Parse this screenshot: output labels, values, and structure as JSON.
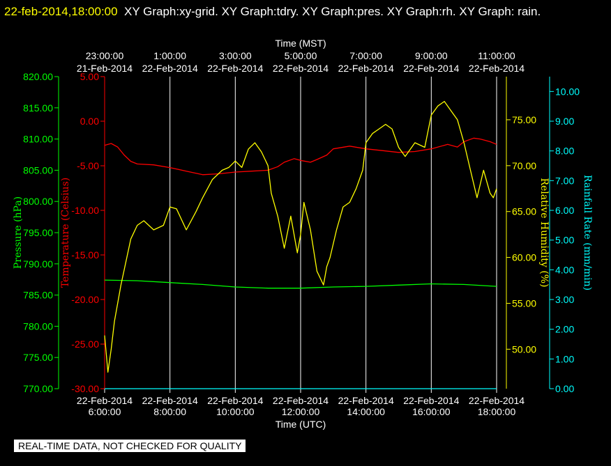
{
  "header": {
    "timestamp": "22-feb-2014,18:00:00",
    "graphs_text": "XY Graph:xy-grid.  XY Graph:tdry.  XY Graph:pres.  XY Graph:rh.  XY Graph: rain."
  },
  "footer": {
    "quality_note": "REAL-TIME DATA, NOT CHECKED FOR QUALITY"
  },
  "colors": {
    "temperature": "#ff0000",
    "pressure": "#00ff00",
    "humidity": "#ffff00",
    "rain": "#00ffff",
    "grid": "#ffffff",
    "axis_x": "#ffffff"
  },
  "chart_data": {
    "type": "line",
    "xlabel_top": "Time (MST)",
    "xlabel_bottom": "Time (UTC)",
    "x_range_utc_hours": [
      6.0,
      18.0
    ],
    "bottom_ticks": [
      {
        "date": "22-Feb-2014",
        "time": "6:00:00",
        "utc_hour": 6
      },
      {
        "date": "22-Feb-2014",
        "time": "8:00:00",
        "utc_hour": 8
      },
      {
        "date": "22-Feb-2014",
        "time": "10:00:00",
        "utc_hour": 10
      },
      {
        "date": "22-Feb-2014",
        "time": "12:00:00",
        "utc_hour": 12
      },
      {
        "date": "22-Feb-2014",
        "time": "14:00:00",
        "utc_hour": 14
      },
      {
        "date": "22-Feb-2014",
        "time": "16:00:00",
        "utc_hour": 16
      },
      {
        "date": "22-Feb-2014",
        "time": "18:00:00",
        "utc_hour": 18
      }
    ],
    "top_ticks": [
      {
        "time": "23:00:00",
        "date": "21-Feb-2014",
        "utc_hour": 6
      },
      {
        "time": "1:00:00",
        "date": "22-Feb-2014",
        "utc_hour": 8
      },
      {
        "time": "3:00:00",
        "date": "22-Feb-2014",
        "utc_hour": 10
      },
      {
        "time": "5:00:00",
        "date": "22-Feb-2014",
        "utc_hour": 12
      },
      {
        "time": "7:00:00",
        "date": "22-Feb-2014",
        "utc_hour": 14
      },
      {
        "time": "9:00:00",
        "date": "22-Feb-2014",
        "utc_hour": 16
      },
      {
        "time": "11:00:00",
        "date": "22-Feb-2014",
        "utc_hour": 18
      }
    ],
    "grid_x_utc_hours": [
      8,
      10,
      12,
      14,
      16,
      18
    ],
    "axes": {
      "pressure": {
        "label": "Pressure (hPa)",
        "ylim": [
          770,
          820
        ],
        "ticks": [
          "770.00",
          "775.00",
          "780.00",
          "785.00",
          "790.00",
          "795.00",
          "800.00",
          "805.00",
          "810.00",
          "815.00",
          "820.00"
        ]
      },
      "temperature": {
        "label": "Temperature (Celsius)",
        "ylim": [
          -30,
          5
        ],
        "ticks": [
          "-30.00",
          "-25.00",
          "-20.00",
          "-15.00",
          "-10.00",
          "-5.00",
          "0.00",
          "5.00"
        ]
      },
      "humidity": {
        "label": "Relative Humidity (%)",
        "ylim": [
          45.7,
          79.7
        ],
        "ticks": [
          "50.00",
          "55.00",
          "60.00",
          "65.00",
          "70.00",
          "75.00"
        ]
      },
      "rain": {
        "label": "Rainfall Rate (mm/min)",
        "ylim": [
          0,
          10.5
        ],
        "ticks": [
          "0.00",
          "1.00",
          "2.00",
          "3.00",
          "4.00",
          "5.00",
          "6.00",
          "7.00",
          "8.00",
          "9.00",
          "10.00"
        ]
      }
    },
    "series": [
      {
        "axis": "temperature",
        "x": [
          6.0,
          6.2,
          6.4,
          6.6,
          6.8,
          7.0,
          7.5,
          8.0,
          8.5,
          9.0,
          9.5,
          10.0,
          10.5,
          11.0,
          11.3,
          11.5,
          11.8,
          12.0,
          12.3,
          12.5,
          12.8,
          13.0,
          13.5,
          14.0,
          14.5,
          15.0,
          15.5,
          16.0,
          16.5,
          16.8,
          17.0,
          17.3,
          17.5,
          17.8,
          18.0
        ],
        "y": [
          -2.7,
          -2.5,
          -2.9,
          -3.8,
          -4.5,
          -4.8,
          -4.9,
          -5.2,
          -5.6,
          -6.0,
          -5.9,
          -5.7,
          -5.6,
          -5.5,
          -5.1,
          -4.6,
          -4.2,
          -4.4,
          -4.6,
          -4.3,
          -3.8,
          -3.1,
          -2.8,
          -3.1,
          -3.3,
          -3.5,
          -3.4,
          -3.1,
          -2.6,
          -2.9,
          -2.3,
          -1.9,
          -2.0,
          -2.3,
          -2.6
        ]
      },
      {
        "axis": "pressure",
        "x": [
          6.0,
          7.0,
          8.0,
          9.0,
          10.0,
          11.0,
          12.0,
          13.0,
          14.0,
          15.0,
          16.0,
          17.0,
          18.0
        ],
        "y": [
          787.4,
          787.3,
          787.0,
          786.7,
          786.3,
          786.1,
          786.1,
          786.3,
          786.4,
          786.6,
          786.8,
          786.7,
          786.4
        ]
      },
      {
        "axis": "humidity",
        "x": [
          6.0,
          6.1,
          6.2,
          6.3,
          6.5,
          6.8,
          7.0,
          7.2,
          7.5,
          7.8,
          8.0,
          8.2,
          8.5,
          8.8,
          9.0,
          9.3,
          9.6,
          9.8,
          10.0,
          10.2,
          10.4,
          10.6,
          10.8,
          11.0,
          11.1,
          11.3,
          11.5,
          11.7,
          11.9,
          12.0,
          12.1,
          12.3,
          12.5,
          12.7,
          12.8,
          12.9,
          13.1,
          13.3,
          13.5,
          13.7,
          13.9,
          14.0,
          14.2,
          14.4,
          14.6,
          14.8,
          15.0,
          15.2,
          15.5,
          15.8,
          16.0,
          16.2,
          16.4,
          16.6,
          16.8,
          17.0,
          17.2,
          17.4,
          17.6,
          17.8,
          17.9,
          18.0
        ],
        "y": [
          51.5,
          47.5,
          50.0,
          53.0,
          57.0,
          62.0,
          63.5,
          64.0,
          63.0,
          63.5,
          65.5,
          65.3,
          63.0,
          65.0,
          66.5,
          68.5,
          69.5,
          69.8,
          70.5,
          69.8,
          71.8,
          72.5,
          71.5,
          70.0,
          67.0,
          64.5,
          61.0,
          64.5,
          60.5,
          62.5,
          66.0,
          63.0,
          58.5,
          57.0,
          59.0,
          60.0,
          63.0,
          65.5,
          66.0,
          67.5,
          69.5,
          72.5,
          73.5,
          74.0,
          74.5,
          74.0,
          72.0,
          71.0,
          72.5,
          72.0,
          75.5,
          76.5,
          77.0,
          76.0,
          75.0,
          72.5,
          69.5,
          66.5,
          69.5,
          67.0,
          66.5,
          67.5
        ]
      },
      {
        "axis": "rain",
        "x": [
          6.0,
          18.0
        ],
        "y": [
          0.0,
          0.0
        ]
      }
    ]
  }
}
